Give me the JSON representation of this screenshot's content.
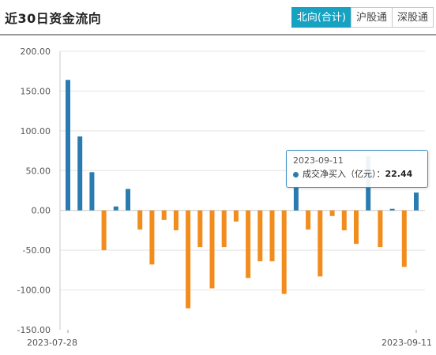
{
  "header": {
    "title": "近30日资金流向",
    "tabs": [
      {
        "label": "北向(合计)",
        "active": true
      },
      {
        "label": "沪股通",
        "active": false
      },
      {
        "label": "深股通",
        "active": false
      }
    ]
  },
  "colors": {
    "positive": "#2a7cb0",
    "negative": "#f28c1c",
    "tab_active": "#17a2c2"
  },
  "tooltip": {
    "date": "2023-09-11",
    "series_label": "成交净买入（亿元）",
    "separator": "：",
    "value": "22.44"
  },
  "chart_data": {
    "type": "bar",
    "ylim": [
      -150,
      200
    ],
    "yticks": [
      "200.00",
      "150.00",
      "100.00",
      "50.00",
      "0.00",
      "-50.00",
      "-100.00",
      "-150.00"
    ],
    "ytick_values": [
      200,
      150,
      100,
      50,
      0,
      -50,
      -100,
      -150
    ],
    "x_first_label": "2023-07-28",
    "x_last_label": "2023-09-11",
    "grid": true,
    "values": [
      164,
      93,
      48,
      -50,
      5,
      27,
      -24,
      -68,
      -12,
      -25,
      -123,
      -46,
      -98,
      -46,
      -14,
      -85,
      -64,
      -64,
      -105,
      30,
      -24,
      -83,
      -7,
      -25,
      -42,
      68,
      -46,
      2,
      -71,
      22.44
    ]
  }
}
